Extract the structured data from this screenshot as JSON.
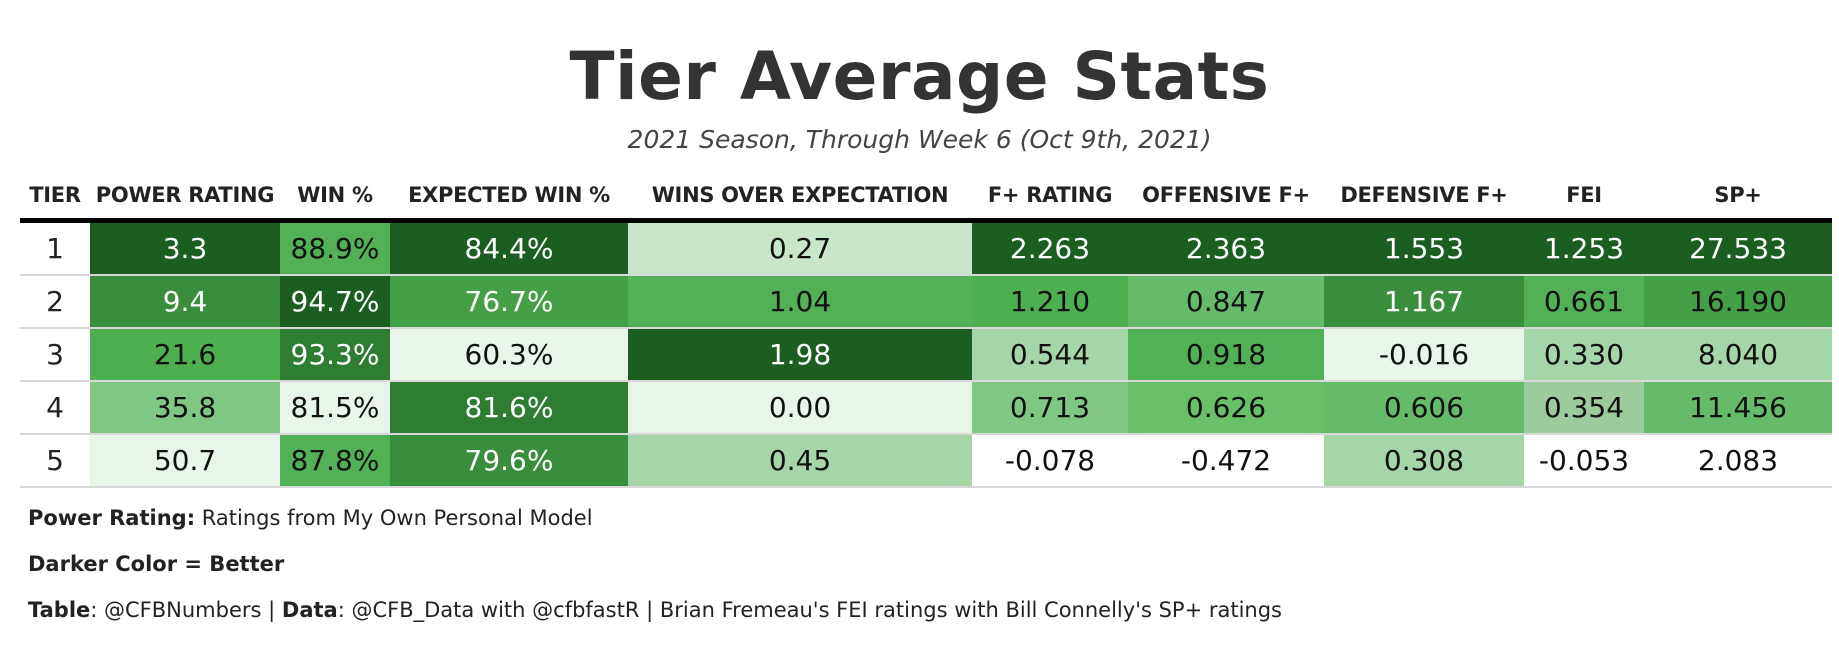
{
  "chart_data": {
    "type": "table",
    "title": "Tier Average Stats",
    "subtitle": "2021 Season, Through Week 6 (Oct 9th, 2021)",
    "columns": [
      "TIER",
      "POWER RATING",
      "WIN %",
      "EXPECTED WIN %",
      "WINS OVER EXPECTATION",
      "F+ RATING",
      "OFFENSIVE F+",
      "DEFENSIVE F+",
      "FEI",
      "SP+"
    ],
    "rows": [
      [
        "1",
        "3.3",
        "88.9%",
        "84.4%",
        "0.27",
        "2.263",
        "2.363",
        "1.553",
        "1.253",
        "27.533"
      ],
      [
        "2",
        "9.4",
        "94.7%",
        "76.7%",
        "1.04",
        "1.210",
        "0.847",
        "1.167",
        "0.661",
        "16.190"
      ],
      [
        "3",
        "21.6",
        "93.3%",
        "60.3%",
        "1.98",
        "0.544",
        "0.918",
        "-0.016",
        "0.330",
        "8.040"
      ],
      [
        "4",
        "35.8",
        "81.5%",
        "81.6%",
        "0.00",
        "0.713",
        "0.626",
        "0.606",
        "0.354",
        "11.456"
      ],
      [
        "5",
        "50.7",
        "87.8%",
        "79.6%",
        "0.45",
        "-0.078",
        "-0.472",
        "0.308",
        "-0.053",
        "2.083"
      ]
    ],
    "cell_colors": [
      [
        "#ffffff",
        "#1b5e20",
        "#52b156",
        "#1b5e20",
        "#c8e6c9",
        "#1b5e20",
        "#1b5e20",
        "#1b5e20",
        "#1b5e20",
        "#1b5e20"
      ],
      [
        "#ffffff",
        "#388e3c",
        "#1b5e20",
        "#43a047",
        "#52b156",
        "#4caf50",
        "#66bb6a",
        "#388e3c",
        "#52b156",
        "#43a047"
      ],
      [
        "#ffffff",
        "#4caf50",
        "#2e7d32",
        "#e8f5e9",
        "#1b5e20",
        "#a5d6a7",
        "#52b156",
        "#e8f5e9",
        "#a5d6a7",
        "#a5d6a7"
      ],
      [
        "#ffffff",
        "#81c784",
        "#e8f5e9",
        "#2e7d32",
        "#e8f5e9",
        "#81c784",
        "#6abf69",
        "#66bb6a",
        "#9ccc9c",
        "#66bb6a"
      ],
      [
        "#ffffff",
        "#e8f5e9",
        "#52b156",
        "#388e3c",
        "#a5d6a7",
        "#ffffff",
        "#ffffff",
        "#a5d6a7",
        "#ffffff",
        "#ffffff"
      ]
    ],
    "text_colors": [
      [
        "#222222",
        "#ffffff",
        "#111111",
        "#ffffff",
        "#111111",
        "#ffffff",
        "#ffffff",
        "#ffffff",
        "#ffffff",
        "#ffffff"
      ],
      [
        "#222222",
        "#ffffff",
        "#ffffff",
        "#ffffff",
        "#111111",
        "#111111",
        "#111111",
        "#ffffff",
        "#111111",
        "#111111"
      ],
      [
        "#222222",
        "#111111",
        "#ffffff",
        "#111111",
        "#ffffff",
        "#111111",
        "#111111",
        "#111111",
        "#111111",
        "#111111"
      ],
      [
        "#222222",
        "#111111",
        "#111111",
        "#ffffff",
        "#111111",
        "#111111",
        "#111111",
        "#111111",
        "#111111",
        "#111111"
      ],
      [
        "#222222",
        "#111111",
        "#111111",
        "#ffffff",
        "#111111",
        "#111111",
        "#111111",
        "#111111",
        "#111111",
        "#111111"
      ]
    ],
    "color_scale_note": "Darker Color = Better"
  },
  "notes": {
    "line1_bold": "Power Rating:",
    "line1_text": " Ratings from My Own Personal Model",
    "line2_bold": "Darker Color = Better",
    "line3_bold_a": "Table",
    "line3_text_a": ": @CFBNumbers | ",
    "line3_bold_b": "Data",
    "line3_text_b": ": @CFB_Data with @cfbfastR | Brian Fremeau's FEI ratings with Bill Connelly's SP+ ratings"
  }
}
